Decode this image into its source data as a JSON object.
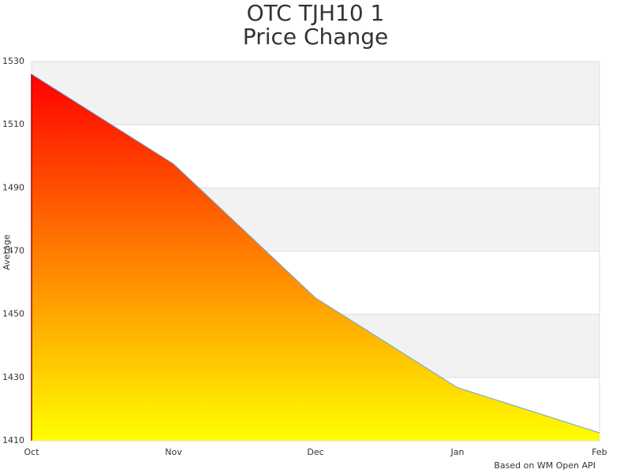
{
  "chart_data": {
    "type": "area",
    "title": [
      "OTC TJH10 1",
      "Price Change"
    ],
    "y_label": "Average",
    "credit": "Based on WM Open API",
    "categories": [
      "Oct",
      "Nov",
      "Dec",
      "Jan",
      "Feb"
    ],
    "series": [
      {
        "name": "Average",
        "values": [
          1526,
          1497.6,
          1455.2,
          1426.8,
          1412.5
        ],
        "color": "#6fa8dc",
        "gradient": [
          "#ff0000",
          "#ffff00"
        ]
      }
    ],
    "ylim": [
      1410,
      1530
    ],
    "yticks": [
      1410,
      1430,
      1450,
      1470,
      1490,
      1510,
      1530
    ],
    "grid": true,
    "alternate_bands": "#f2f2f2",
    "legend": false
  }
}
